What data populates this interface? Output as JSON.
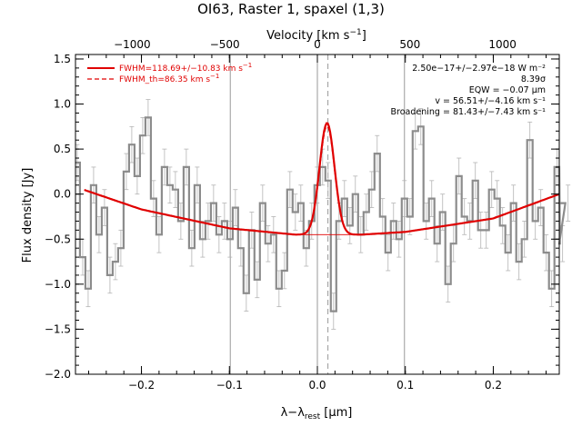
{
  "chart_data": {
    "type": "line",
    "title": "OI63, Raster 1, spaxel (1,3)",
    "xlabel": "λ−λ",
    "xlabel_sub": "rest",
    "xlabel_unit": " [μm]",
    "ylabel": "Flux density [Jy]",
    "top_xlabel": "Velocity [km s",
    "top_xlabel_sup": "−1",
    "top_xlabel_close": "]",
    "xlim": [
      -0.275,
      0.275
    ],
    "ylim": [
      -2.0,
      1.55
    ],
    "x_ticks": [
      -0.2,
      -0.1,
      0.0,
      0.1,
      0.2
    ],
    "x_tick_labels": [
      "−0.2",
      "−0.1",
      "0.0",
      "0.1",
      "0.2"
    ],
    "y_ticks": [
      -2.0,
      -1.5,
      -1.0,
      -0.5,
      0.0,
      0.5,
      1.0,
      1.5
    ],
    "y_tick_labels": [
      "−2.0",
      "−1.5",
      "−1.0",
      "−0.5",
      "0.0",
      "0.5",
      "1.0",
      "1.5"
    ],
    "top_ticks_velocity": [
      -1000,
      -500,
      0,
      500,
      1000
    ],
    "top_tick_labels": [
      "−1000",
      "−500",
      "0",
      "500",
      "1000"
    ],
    "velocity_per_micron": 4750,
    "vertical_lines_x": [
      -0.099,
      0.0,
      0.099
    ],
    "dashed_line_x": 0.012,
    "legend_position": "top-left",
    "legend": [
      {
        "label": "FWHM=118.69+/−10.83 km s",
        "sup": "−1",
        "style": "solid",
        "color": "#e00000"
      },
      {
        "label": "FWHM_th=86.35 km s",
        "sup": "−1",
        "style": "dashed",
        "color": "#e00000"
      }
    ],
    "annotations": [
      "2.50e−17+/−2.97e−18 W m⁻²",
      "8.39σ",
      "EQW = −0.07 μm",
      "v = 56.51+/−4.16 km s⁻¹",
      "Broadening = 81.43+/−7.43 km s⁻¹"
    ],
    "colors": {
      "data": "#8c8c8c",
      "fit": "#e00000",
      "guide": "#999999"
    },
    "series": [
      {
        "name": "data",
        "style": "steps",
        "color": "#8c8c8c",
        "x_start": -0.273,
        "x_step": 0.0062,
        "y": [
          0.35,
          -0.7,
          -1.05,
          0.1,
          -0.45,
          -0.15,
          -0.9,
          -0.75,
          -0.6,
          0.25,
          0.55,
          0.2,
          0.65,
          0.85,
          -0.05,
          -0.45,
          0.3,
          0.1,
          0.05,
          -0.3,
          0.3,
          -0.6,
          0.1,
          -0.5,
          -0.3,
          -0.1,
          -0.45,
          -0.3,
          -0.5,
          -0.15,
          -0.6,
          -1.1,
          -0.4,
          -0.95,
          -0.1,
          -0.55,
          -0.45,
          -1.05,
          -0.85,
          0.05,
          -0.2,
          -0.1,
          -0.6,
          -0.3,
          0.1,
          0.3,
          0.15,
          -1.3,
          -0.3,
          -0.05,
          -0.35,
          0.0,
          -0.45,
          -0.2,
          0.05,
          0.45,
          -0.25,
          -0.65,
          -0.3,
          -0.5,
          -0.05,
          -0.25,
          0.7,
          0.75,
          -0.3,
          -0.05,
          -0.55,
          -0.2,
          -1.0,
          -0.55,
          0.2,
          -0.25,
          -0.3,
          0.15,
          -0.4,
          -0.4,
          0.05,
          -0.05,
          -0.35,
          -0.65,
          -0.1,
          -0.75,
          -0.5,
          0.6,
          -0.3,
          -0.15,
          -0.65,
          -1.05,
          0.3,
          -0.55,
          -0.1
        ]
      },
      {
        "name": "fit",
        "style": "line",
        "color": "#e00000",
        "continuum_x": [
          -0.275,
          -0.2,
          -0.1,
          -0.025,
          0.05,
          0.1,
          0.2,
          0.275
        ],
        "continuum_y": [
          0.08,
          -0.17,
          -0.38,
          -0.45,
          -0.45,
          -0.42,
          -0.27,
          0.0
        ],
        "gaussian_center": 0.011,
        "gaussian_amplitude": 1.24,
        "gaussian_sigma": 0.0085
      }
    ]
  }
}
